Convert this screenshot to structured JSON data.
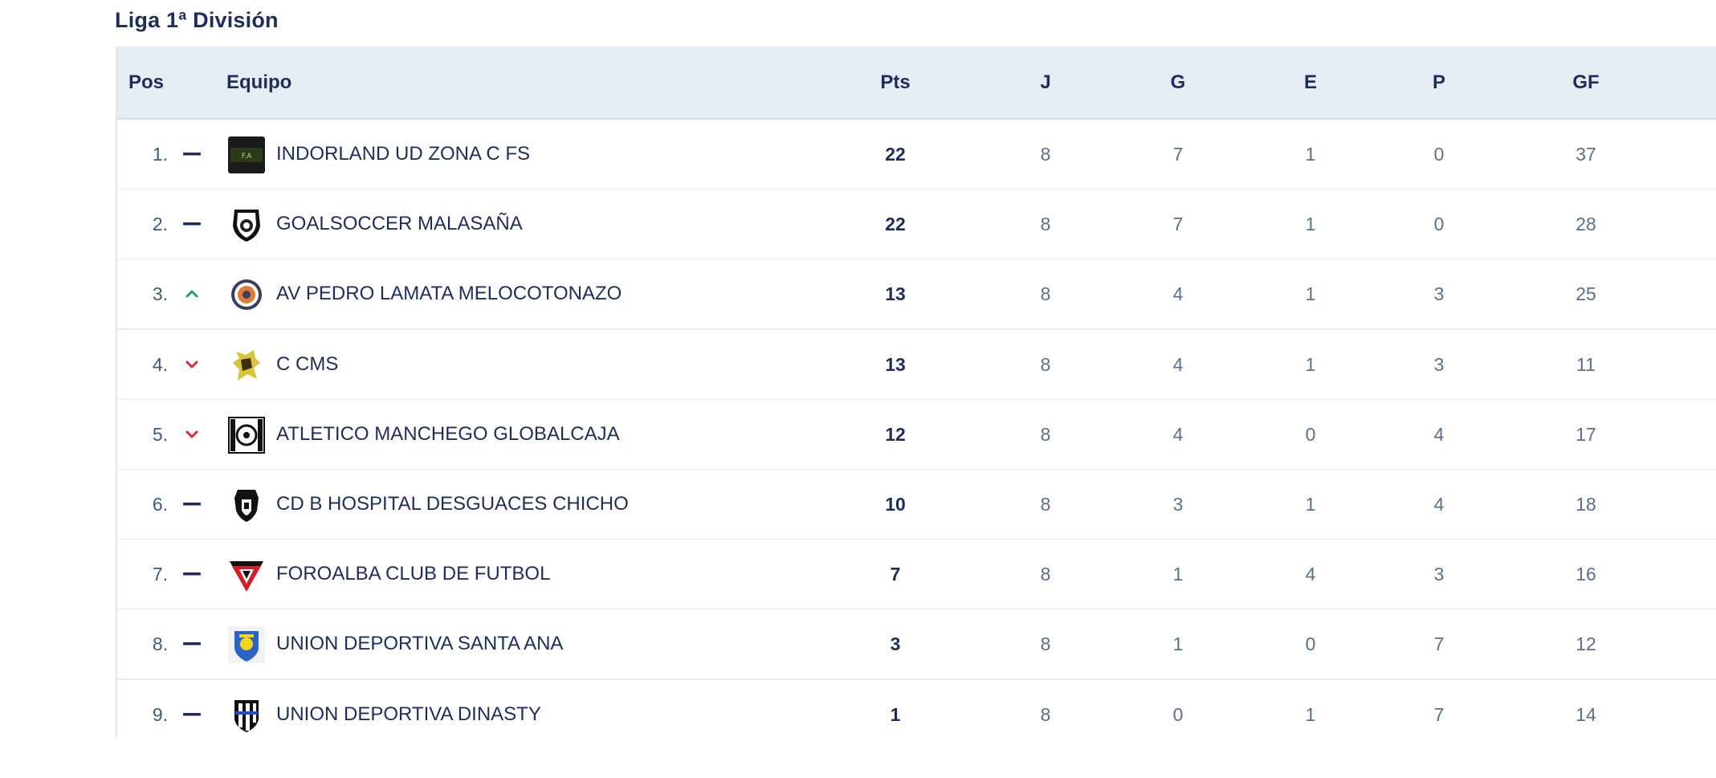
{
  "title": "Liga 1ª División",
  "headers": {
    "pos": "Pos",
    "team": "Equipo",
    "pts": "Pts",
    "j": "J",
    "g": "G",
    "e": "E",
    "p": "P",
    "gf": "GF"
  },
  "colors": {
    "header_bg": "#e6ecf4",
    "trend_same": "#1f2d5a",
    "trend_up": "#2a9d6f",
    "trend_down": "#d62b3a"
  },
  "rows": [
    {
      "pos": "1.",
      "trend": "same",
      "crest": "indorland-crest-icon",
      "team": "INDORLAND UD ZONA C FS",
      "pts": "22",
      "j": "8",
      "g": "7",
      "e": "1",
      "p": "0",
      "gf": "37"
    },
    {
      "pos": "2.",
      "trend": "same",
      "crest": "goalsoccer-crest-icon",
      "team": "GOALSOCCER MALASAÑA",
      "pts": "22",
      "j": "8",
      "g": "7",
      "e": "1",
      "p": "0",
      "gf": "28"
    },
    {
      "pos": "3.",
      "trend": "up",
      "crest": "pedro-lamata-crest-icon",
      "team": "AV PEDRO LAMATA MELOCOTONAZO",
      "pts": "13",
      "j": "8",
      "g": "4",
      "e": "1",
      "p": "3",
      "gf": "25"
    },
    {
      "pos": "4.",
      "trend": "down",
      "crest": "ccms-crest-icon",
      "team": "C CMS",
      "pts": "13",
      "j": "8",
      "g": "4",
      "e": "1",
      "p": "3",
      "gf": "11"
    },
    {
      "pos": "5.",
      "trend": "down",
      "crest": "atletico-manchego-crest-icon",
      "team": "ATLETICO MANCHEGO GLOBALCAJA",
      "pts": "12",
      "j": "8",
      "g": "4",
      "e": "0",
      "p": "4",
      "gf": "17"
    },
    {
      "pos": "6.",
      "trend": "same",
      "crest": "cd-b-hospital-crest-icon",
      "team": "CD B HOSPITAL DESGUACES CHICHO",
      "pts": "10",
      "j": "8",
      "g": "3",
      "e": "1",
      "p": "4",
      "gf": "18"
    },
    {
      "pos": "7.",
      "trend": "same",
      "crest": "foroalba-crest-icon",
      "team": "FOROALBA CLUB DE FUTBOL",
      "pts": "7",
      "j": "8",
      "g": "1",
      "e": "4",
      "p": "3",
      "gf": "16"
    },
    {
      "pos": "8.",
      "trend": "same",
      "crest": "santa-ana-crest-icon",
      "team": "UNION DEPORTIVA SANTA ANA",
      "pts": "3",
      "j": "8",
      "g": "1",
      "e": "0",
      "p": "7",
      "gf": "12"
    },
    {
      "pos": "9.",
      "trend": "same",
      "crest": "dinasty-crest-icon",
      "team": "UNION DEPORTIVA DINASTY",
      "pts": "1",
      "j": "8",
      "g": "0",
      "e": "1",
      "p": "7",
      "gf": "14"
    }
  ]
}
